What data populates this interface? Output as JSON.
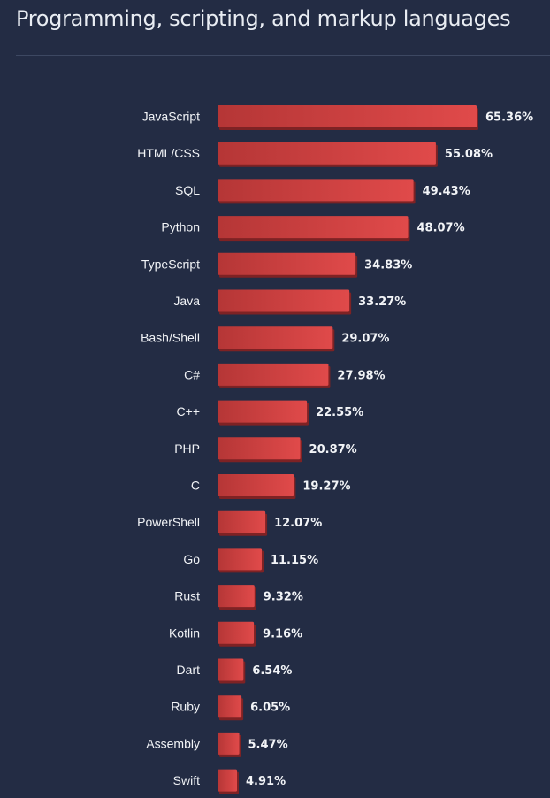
{
  "title": "Programming, scripting, and markup languages",
  "colors": {
    "background": "#232c44",
    "bar_light": "#e04a4a",
    "bar_dark": "#b53636",
    "bar_shadow": "#7e2224",
    "text": "#f2f4f7"
  },
  "chart_data": {
    "type": "bar",
    "orientation": "horizontal",
    "title": "Programming, scripting, and markup languages",
    "xlabel": "",
    "ylabel": "",
    "grid": false,
    "xlim": [
      0,
      65.36
    ],
    "categories": [
      "JavaScript",
      "HTML/CSS",
      "SQL",
      "Python",
      "TypeScript",
      "Java",
      "Bash/Shell",
      "C#",
      "C++",
      "PHP",
      "C",
      "PowerShell",
      "Go",
      "Rust",
      "Kotlin",
      "Dart",
      "Ruby",
      "Assembly",
      "Swift"
    ],
    "values": [
      65.36,
      55.08,
      49.43,
      48.07,
      34.83,
      33.27,
      29.07,
      27.98,
      22.55,
      20.87,
      19.27,
      12.07,
      11.15,
      9.32,
      9.16,
      6.54,
      6.05,
      5.47,
      4.91
    ],
    "value_labels": [
      "65.36%",
      "55.08%",
      "49.43%",
      "48.07%",
      "34.83%",
      "33.27%",
      "29.07%",
      "27.98%",
      "22.55%",
      "20.87%",
      "19.27%",
      "12.07%",
      "11.15%",
      "9.32%",
      "9.16%",
      "6.54%",
      "6.05%",
      "5.47%",
      "4.91%"
    ]
  }
}
